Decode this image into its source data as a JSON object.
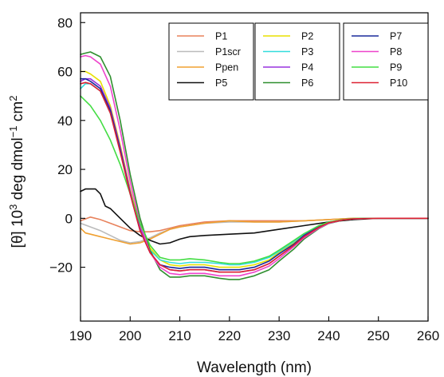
{
  "chart_data": {
    "type": "line",
    "title": "",
    "xlabel": "Wavelength (nm)",
    "ylabel_parts": {
      "prefix": "[θ] 10",
      "exp1": "3",
      "middle": " deg dmol",
      "exp2": "−1",
      "space": " cm",
      "exp3": "2"
    },
    "xlim": [
      190,
      260
    ],
    "ylim": [
      -42,
      84
    ],
    "xticks": [
      190,
      200,
      210,
      220,
      230,
      240,
      250,
      260
    ],
    "yticks": [
      -20,
      0,
      20,
      40,
      60,
      80
    ],
    "grid": false,
    "legend_placement": "top-right",
    "legend_groups": [
      [
        "P1",
        "P1scr",
        "Ppen",
        "P5"
      ],
      [
        "P2",
        "P3",
        "P4",
        "P6"
      ],
      [
        "P7",
        "P8",
        "P9",
        "P10"
      ]
    ],
    "series": [
      {
        "name": "P1",
        "color": "#e8825c",
        "x": [
          190,
          192,
          194,
          196,
          198,
          200,
          202,
          204,
          206,
          208,
          210,
          215,
          220,
          225,
          230,
          235,
          240,
          245,
          250,
          260
        ],
        "y": [
          -1,
          0.5,
          -0.5,
          -2,
          -3.5,
          -5,
          -5.5,
          -5.5,
          -5,
          -4,
          -3,
          -1.5,
          -1,
          -1,
          -1,
          -1,
          -0.5,
          0,
          0,
          0
        ]
      },
      {
        "name": "P1scr",
        "color": "#bbbbbb",
        "x": [
          190,
          192,
          194,
          196,
          198,
          200,
          202,
          204,
          206,
          208,
          210,
          215,
          220,
          225,
          230,
          235,
          240,
          245,
          250,
          260
        ],
        "y": [
          -2,
          -3.5,
          -5,
          -7,
          -9,
          -10,
          -9.5,
          -8,
          -6,
          -4.5,
          -3.5,
          -2,
          -1.5,
          -1.5,
          -1.5,
          -1,
          -0.5,
          0,
          0,
          0
        ]
      },
      {
        "name": "Ppen",
        "color": "#f0a030",
        "x": [
          190,
          191,
          192,
          194,
          196,
          198,
          200,
          202,
          204,
          206,
          208,
          210,
          215,
          220,
          225,
          230,
          235,
          240,
          245,
          250,
          260
        ],
        "y": [
          -4,
          -6,
          -6.5,
          -7.5,
          -8.5,
          -9.5,
          -10.5,
          -10,
          -8.5,
          -6.5,
          -4.5,
          -3.5,
          -2,
          -1,
          -1.5,
          -1.5,
          -1,
          -0.5,
          0,
          0,
          0
        ]
      },
      {
        "name": "P5",
        "color": "#111111",
        "x": [
          190,
          191,
          193,
          194,
          195,
          196,
          198,
          200,
          202,
          204,
          206,
          208,
          210,
          212,
          215,
          220,
          225,
          230,
          235,
          240,
          245,
          250,
          260
        ],
        "y": [
          11,
          12,
          12,
          10,
          5,
          4,
          0,
          -4,
          -7,
          -9,
          -10.5,
          -10,
          -8.5,
          -7.5,
          -7,
          -6.5,
          -6,
          -4.5,
          -3,
          -1.5,
          -0.5,
          0,
          0
        ]
      },
      {
        "name": "P2",
        "color": "#e8e000",
        "x": [
          190,
          191,
          192,
          194,
          196,
          198,
          200,
          202,
          204,
          206,
          208,
          210,
          212,
          215,
          218,
          220,
          222,
          225,
          228,
          230,
          233,
          235,
          238,
          240,
          243,
          245,
          250,
          260
        ],
        "y": [
          60,
          60,
          59,
          56,
          46,
          30,
          12,
          -3,
          -12,
          -17,
          -19,
          -19.5,
          -19,
          -19,
          -20,
          -20,
          -20,
          -19,
          -17,
          -14,
          -10,
          -7,
          -3.5,
          -1.8,
          -0.6,
          -0.2,
          0,
          0
        ]
      },
      {
        "name": "P3",
        "color": "#33dddd",
        "x": [
          190,
          191,
          192,
          194,
          196,
          198,
          200,
          202,
          204,
          206,
          208,
          210,
          212,
          215,
          218,
          220,
          222,
          225,
          228,
          230,
          233,
          235,
          238,
          240,
          243,
          245,
          250,
          260
        ],
        "y": [
          53,
          55,
          55,
          52,
          43,
          28,
          11,
          -4,
          -13,
          -17,
          -18,
          -18.5,
          -18,
          -18,
          -18.5,
          -19,
          -19,
          -18,
          -16,
          -13.5,
          -9.5,
          -6.5,
          -3.2,
          -1.6,
          -0.5,
          -0.2,
          0,
          0
        ]
      },
      {
        "name": "P4",
        "color": "#9933dd",
        "x": [
          190,
          191,
          192,
          194,
          196,
          198,
          200,
          202,
          204,
          206,
          208,
          210,
          212,
          215,
          218,
          220,
          222,
          225,
          228,
          230,
          233,
          235,
          238,
          240,
          243,
          245,
          250,
          260
        ],
        "y": [
          56,
          57,
          57,
          54,
          45,
          29,
          11,
          -4,
          -14,
          -19,
          -21,
          -21.5,
          -21,
          -21,
          -22,
          -22,
          -22,
          -21,
          -18.5,
          -15.5,
          -11,
          -7.5,
          -3.7,
          -1.9,
          -0.6,
          -0.2,
          0,
          0
        ]
      },
      {
        "name": "P6",
        "color": "#2f8f2f",
        "x": [
          190,
          191,
          192,
          194,
          196,
          198,
          200,
          202,
          204,
          206,
          208,
          210,
          212,
          215,
          218,
          220,
          222,
          225,
          228,
          230,
          233,
          235,
          238,
          240,
          243,
          245,
          250,
          260
        ],
        "y": [
          67,
          67.5,
          68,
          66,
          58,
          40,
          18,
          0,
          -13,
          -21,
          -24,
          -24,
          -23.5,
          -23.5,
          -24.5,
          -25,
          -25,
          -23.5,
          -21,
          -17.5,
          -12.5,
          -8.5,
          -4.2,
          -2.1,
          -0.7,
          -0.2,
          0,
          0
        ]
      },
      {
        "name": "P7",
        "color": "#1a2a9c",
        "x": [
          190,
          191,
          192,
          194,
          196,
          198,
          200,
          202,
          204,
          206,
          208,
          210,
          212,
          215,
          218,
          220,
          222,
          225,
          228,
          230,
          233,
          235,
          238,
          240,
          243,
          245,
          250,
          260
        ],
        "y": [
          57,
          57,
          56,
          53,
          44,
          28,
          10,
          -5,
          -14,
          -19,
          -20,
          -20.5,
          -20,
          -20,
          -21,
          -21,
          -21,
          -20,
          -17.5,
          -14.5,
          -10.5,
          -7,
          -3.5,
          -1.7,
          -0.5,
          -0.2,
          0,
          0
        ]
      },
      {
        "name": "P8",
        "color": "#ee44cc",
        "x": [
          190,
          191,
          192,
          194,
          196,
          198,
          200,
          202,
          204,
          206,
          208,
          210,
          212,
          215,
          218,
          220,
          222,
          225,
          228,
          230,
          233,
          235,
          238,
          240,
          243,
          245,
          250,
          260
        ],
        "y": [
          66,
          66.5,
          66,
          63,
          54,
          36,
          15,
          -2,
          -14,
          -20,
          -22.5,
          -23,
          -22.5,
          -22.5,
          -23.5,
          -23.5,
          -23.5,
          -22,
          -19.5,
          -16.5,
          -11.5,
          -8,
          -4,
          -2,
          -0.6,
          -0.2,
          0,
          0
        ]
      },
      {
        "name": "P9",
        "color": "#44dd44",
        "x": [
          190,
          192,
          194,
          196,
          198,
          200,
          202,
          204,
          206,
          208,
          210,
          212,
          215,
          218,
          220,
          222,
          225,
          228,
          230,
          233,
          235,
          238,
          240,
          243,
          245,
          250,
          260
        ],
        "y": [
          50,
          46,
          40,
          32,
          22,
          10,
          -2,
          -11,
          -16,
          -17,
          -17,
          -16.5,
          -17,
          -18,
          -18.5,
          -18.5,
          -17.5,
          -15.5,
          -13,
          -9,
          -6.3,
          -3,
          -1.5,
          -0.5,
          -0.1,
          0,
          0
        ]
      },
      {
        "name": "P10",
        "color": "#dd2233",
        "x": [
          190,
          191,
          192,
          194,
          196,
          198,
          200,
          202,
          204,
          206,
          208,
          210,
          212,
          215,
          218,
          220,
          222,
          225,
          228,
          230,
          233,
          235,
          238,
          240,
          243,
          245,
          250,
          260
        ],
        "y": [
          55,
          55.5,
          55,
          52,
          43,
          27,
          10,
          -5,
          -14,
          -19,
          -21,
          -21.5,
          -21,
          -21,
          -22,
          -22,
          -22,
          -21,
          -18.5,
          -15.5,
          -11,
          -7.5,
          -3.7,
          -1.8,
          -0.6,
          -0.2,
          0,
          0
        ]
      }
    ]
  }
}
